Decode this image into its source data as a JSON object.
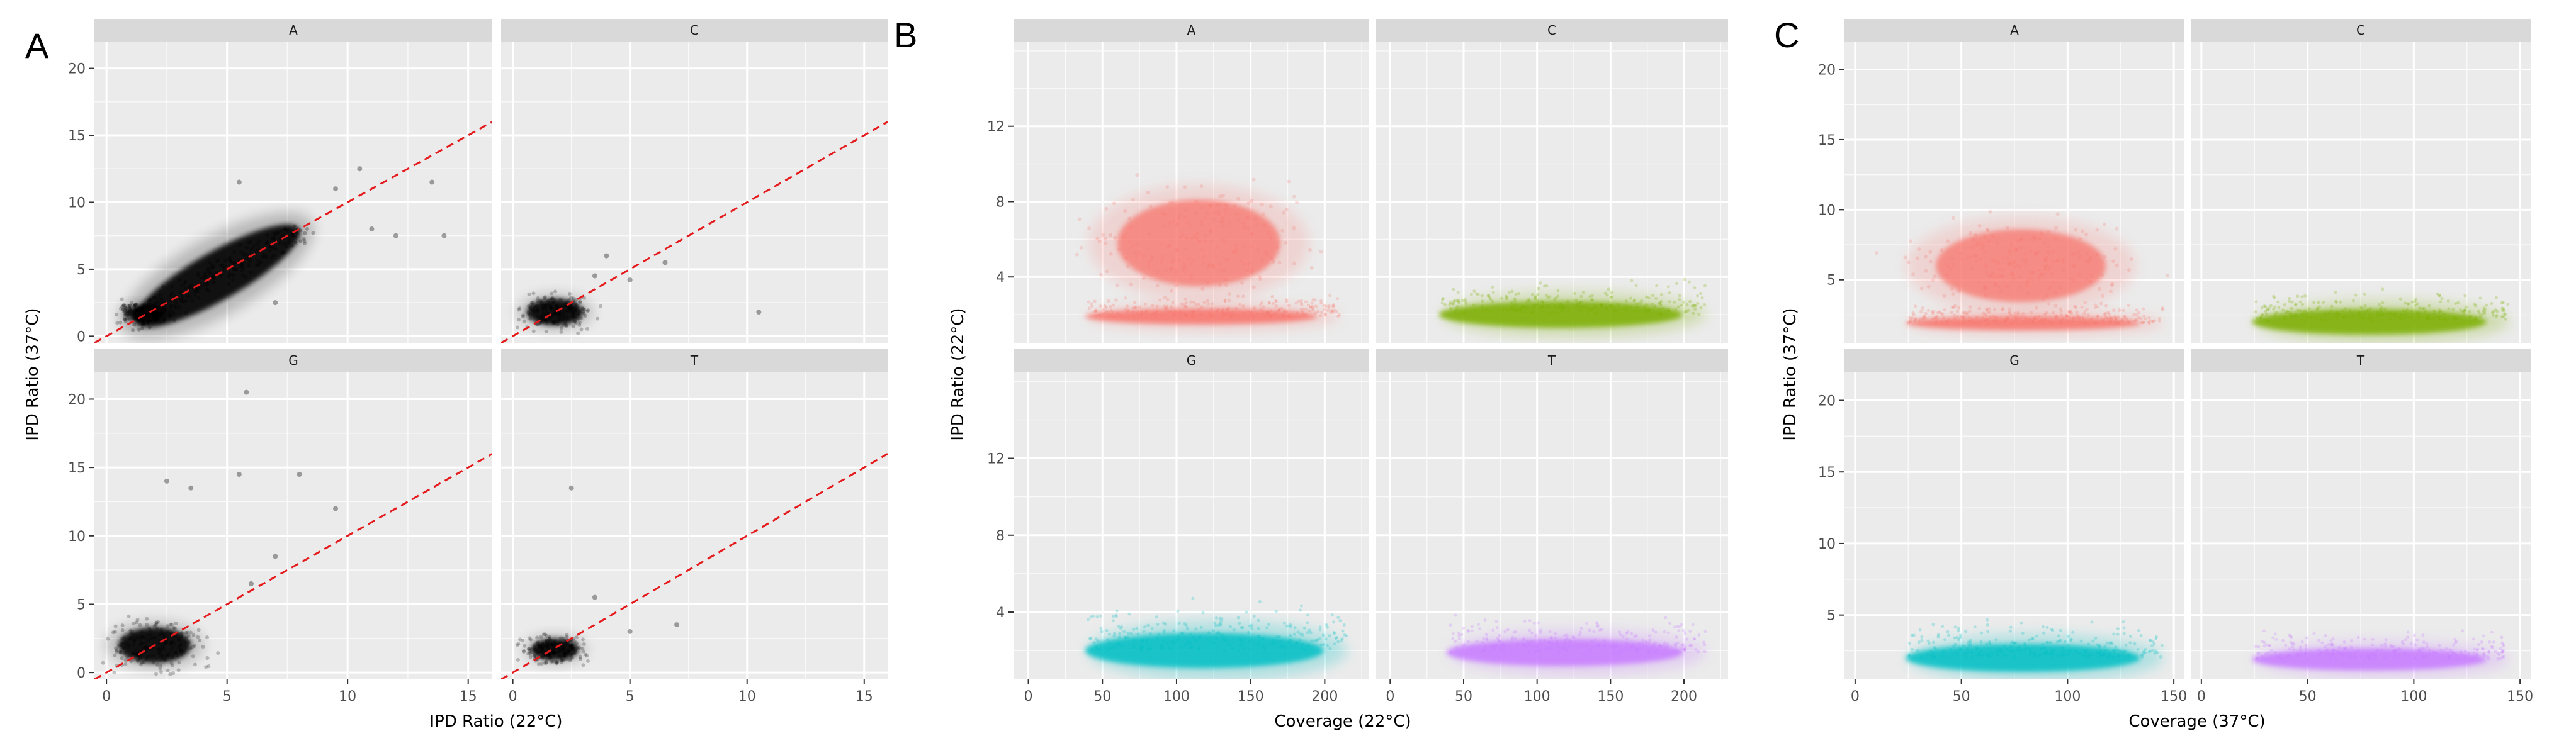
{
  "figure": {
    "panels": [
      {
        "letter": "A",
        "xlabel": "IPD Ratio (22°C)",
        "ylabel": "IPD Ratio (37°C)"
      },
      {
        "letter": "B",
        "xlabel": "Coverage (22°C)",
        "ylabel": "IPD Ratio (22°C)"
      },
      {
        "letter": "C",
        "xlabel": "Coverage (37°C)",
        "ylabel": "IPD Ratio (37°C)"
      }
    ]
  },
  "colors": {
    "A": "#F8766D",
    "C": "#7CAE00",
    "G": "#00BFC4",
    "T": "#C77CFF",
    "black": "#000000",
    "diagonal": "#E41A1C",
    "panel_bg": "#EBEBEB",
    "strip_bg": "#D9D9D9",
    "grid": "#FFFFFF"
  },
  "chart_data": [
    {
      "panel": "A",
      "type": "scatter",
      "xlabel": "IPD Ratio (22°C)",
      "ylabel": "IPD Ratio (37°C)",
      "xlim": [
        -0.5,
        16
      ],
      "ylim": [
        -0.5,
        22
      ],
      "x_ticks": [
        0,
        5,
        10,
        15
      ],
      "y_ticks": [
        0,
        5,
        10,
        15,
        20
      ],
      "grid": true,
      "reference_line": {
        "style": "dashed",
        "color": "red",
        "slope": 1,
        "intercept": 0
      },
      "facets": [
        {
          "label": "A",
          "color": "black",
          "clusters": [
            {
              "kind": "elongated",
              "x": [
                1.2,
                8.0
              ],
              "y": [
                1.0,
                8.0
              ],
              "width": 1.0
            },
            {
              "kind": "blob",
              "x": 1.6,
              "y": 1.7,
              "rx": 0.8,
              "ry": 0.6
            }
          ],
          "outliers": [
            [
              10.5,
              12.5
            ],
            [
              12,
              7.5
            ],
            [
              14,
              7.5
            ],
            [
              13.5,
              11.5
            ],
            [
              7,
              2.5
            ],
            [
              11,
              8
            ],
            [
              9.5,
              11
            ],
            [
              5.5,
              11.5
            ]
          ]
        },
        {
          "label": "C",
          "color": "black",
          "clusters": [
            {
              "kind": "blob",
              "x": 1.8,
              "y": 1.8,
              "rx": 1.2,
              "ry": 1.0
            }
          ],
          "outliers": [
            [
              3.5,
              4.5
            ],
            [
              5,
              4.2
            ],
            [
              6.5,
              5.5
            ],
            [
              4,
              6
            ],
            [
              10.5,
              1.8
            ]
          ]
        },
        {
          "label": "G",
          "color": "black",
          "clusters": [
            {
              "kind": "blob",
              "x": 2.0,
              "y": 2.0,
              "rx": 1.5,
              "ry": 1.3
            }
          ],
          "outliers": [
            [
              5.8,
              20.5
            ],
            [
              2.5,
              14
            ],
            [
              3.5,
              13.5
            ],
            [
              5.5,
              14.5
            ],
            [
              8,
              14.5
            ],
            [
              7,
              8.5
            ],
            [
              6,
              6.5
            ],
            [
              9.5,
              12
            ]
          ]
        },
        {
          "label": "T",
          "color": "black",
          "clusters": [
            {
              "kind": "blob",
              "x": 1.8,
              "y": 1.7,
              "rx": 1.0,
              "ry": 0.8
            }
          ],
          "outliers": [
            [
              3.5,
              5.5
            ],
            [
              2.5,
              13.5
            ],
            [
              7,
              3.5
            ],
            [
              5,
              3
            ]
          ]
        }
      ]
    },
    {
      "panel": "B",
      "type": "scatter",
      "xlabel": "Coverage (22°C)",
      "ylabel": "IPD Ratio (22°C)",
      "xlim": [
        -10,
        230
      ],
      "ylim": [
        0.5,
        16.5
      ],
      "x_ticks": [
        0,
        50,
        100,
        150,
        200
      ],
      "y_ticks": [
        4,
        8,
        12
      ],
      "grid": true,
      "facets": [
        {
          "label": "A",
          "color": "A",
          "clusters": [
            {
              "kind": "blob",
              "x": 115,
              "y": 5.8,
              "rx": 55,
              "ry": 2.3
            },
            {
              "kind": "band",
              "x": [
                40,
                210
              ],
              "y": 1.9,
              "height": 0.6
            }
          ]
        },
        {
          "label": "C",
          "color": "C",
          "clusters": [
            {
              "kind": "band",
              "x": [
                35,
                215
              ],
              "y": 2.0,
              "height": 1.0
            }
          ]
        },
        {
          "label": "G",
          "color": "G",
          "clusters": [
            {
              "kind": "band",
              "x": [
                40,
                215
              ],
              "y": 2.0,
              "height": 1.3
            }
          ]
        },
        {
          "label": "T",
          "color": "T",
          "clusters": [
            {
              "kind": "band",
              "x": [
                40,
                215
              ],
              "y": 1.9,
              "height": 1.0
            }
          ]
        }
      ]
    },
    {
      "panel": "C",
      "type": "scatter",
      "xlabel": "Coverage (37°C)",
      "ylabel": "IPD Ratio (37°C)",
      "xlim": [
        -5,
        155
      ],
      "ylim": [
        0.5,
        22
      ],
      "x_ticks": [
        0,
        50,
        100,
        150
      ],
      "y_ticks": [
        5,
        10,
        15,
        20
      ],
      "grid": true,
      "facets": [
        {
          "label": "A",
          "color": "A",
          "clusters": [
            {
              "kind": "blob",
              "x": 78,
              "y": 6.0,
              "rx": 40,
              "ry": 2.6
            },
            {
              "kind": "band",
              "x": [
                25,
                145
              ],
              "y": 1.9,
              "height": 0.7
            }
          ]
        },
        {
          "label": "C",
          "color": "C",
          "clusters": [
            {
              "kind": "band",
              "x": [
                25,
                145
              ],
              "y": 2.0,
              "height": 1.3
            }
          ]
        },
        {
          "label": "G",
          "color": "G",
          "clusters": [
            {
              "kind": "band",
              "x": [
                25,
                145
              ],
              "y": 2.0,
              "height": 1.4
            }
          ]
        },
        {
          "label": "T",
          "color": "T",
          "clusters": [
            {
              "kind": "band",
              "x": [
                25,
                145
              ],
              "y": 1.9,
              "height": 1.1
            }
          ]
        }
      ]
    }
  ]
}
